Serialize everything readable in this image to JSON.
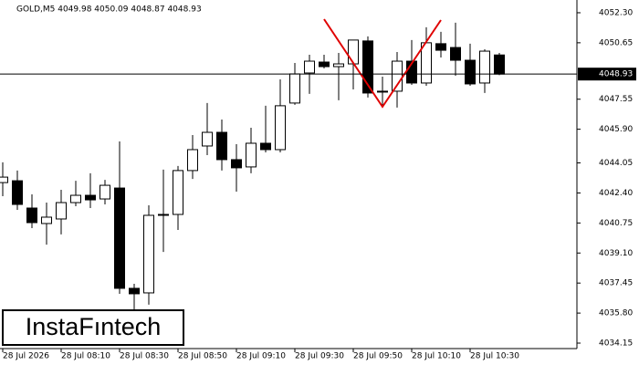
{
  "chart_data": {
    "type": "candlestick",
    "header": "GOLD,M5  4049.98 4050.09 4048.87 4048.93",
    "watermark": "InstaFıntech",
    "categories": [
      "28 Jul 2026",
      null,
      null,
      null,
      "28 Jul 08:10",
      null,
      null,
      null,
      "28 Jul 08:30",
      null,
      null,
      null,
      "28 Jul 08:50",
      null,
      null,
      null,
      "28 Jul 09:10",
      null,
      null,
      null,
      "28 Jul 09:30",
      null,
      null,
      null,
      "28 Jul 09:50",
      null,
      null,
      null,
      "28 Jul 10:10",
      null,
      null,
      null,
      "28 Jul 10:30",
      null,
      null
    ],
    "open": [
      4042.97,
      4043.07,
      4041.57,
      4040.72,
      4040.97,
      4041.87,
      4042.27,
      4042.07,
      4042.67,
      4037.16,
      4036.91,
      4041.22,
      4041.22,
      4043.63,
      4044.98,
      4045.73,
      4044.23,
      4043.83,
      4045.13,
      4044.78,
      4047.34,
      4048.99,
      4049.59,
      4049.34,
      4049.49,
      4050.75,
      4047.99,
      4047.99,
      4049.64,
      4048.44,
      4050.6,
      4050.39,
      4049.69,
      4048.44,
      4049.98
    ],
    "high": [
      4044.08,
      4043.63,
      4042.32,
      4041.87,
      4042.57,
      4043.07,
      4043.48,
      4043.12,
      4045.23,
      4037.41,
      4041.72,
      4043.68,
      4043.88,
      4045.58,
      4047.34,
      4046.43,
      4045.08,
      4045.98,
      4047.19,
      4048.64,
      4049.54,
      4049.99,
      4049.99,
      4050.09,
      4050.8,
      4051.0,
      4048.79,
      4050.14,
      4050.8,
      4051.5,
      4051.25,
      4051.75,
      4050.6,
      4050.29,
      4050.09
    ],
    "low": [
      4042.22,
      4041.47,
      4040.47,
      4039.56,
      4040.12,
      4041.67,
      4041.57,
      4041.77,
      4036.86,
      4035.95,
      4036.26,
      4039.16,
      4040.37,
      4043.17,
      4044.48,
      4043.63,
      4042.47,
      4043.48,
      4044.63,
      4044.63,
      4047.24,
      4047.84,
      4049.24,
      4047.49,
      4048.09,
      4047.64,
      4047.19,
      4047.09,
      4048.34,
      4048.29,
      4049.84,
      4048.84,
      4048.29,
      4047.89,
      4048.87
    ],
    "close": [
      4043.27,
      4041.77,
      4040.77,
      4041.07,
      4041.87,
      4042.27,
      4042.02,
      4042.82,
      4037.16,
      4036.86,
      4041.17,
      4041.17,
      4043.63,
      4044.78,
      4045.73,
      4044.23,
      4043.78,
      4045.13,
      4044.78,
      4047.19,
      4048.94,
      4049.64,
      4049.34,
      4049.49,
      4050.8,
      4047.89,
      4047.94,
      4049.64,
      4048.44,
      4050.65,
      4050.24,
      4049.69,
      4048.39,
      4050.19,
      4048.93
    ],
    "up_color": "#ffffff",
    "down_color": "#000000",
    "current_price": 4048.93,
    "ylim": [
      4033.85,
      4053.0
    ],
    "yticks": [
      {
        "value": 4052.3,
        "label": "4052.30"
      },
      4050.65,
      4047.55,
      {
        "value": 4045.9,
        "label": "4045.90"
      },
      4044.05,
      {
        "value": 4042.4,
        "label": "4042.40"
      },
      4040.75,
      {
        "value": 4039.1,
        "label": "4039.10"
      },
      4037.45,
      {
        "value": 4035.8,
        "label": "4035.80"
      },
      4034.15
    ]
  }
}
